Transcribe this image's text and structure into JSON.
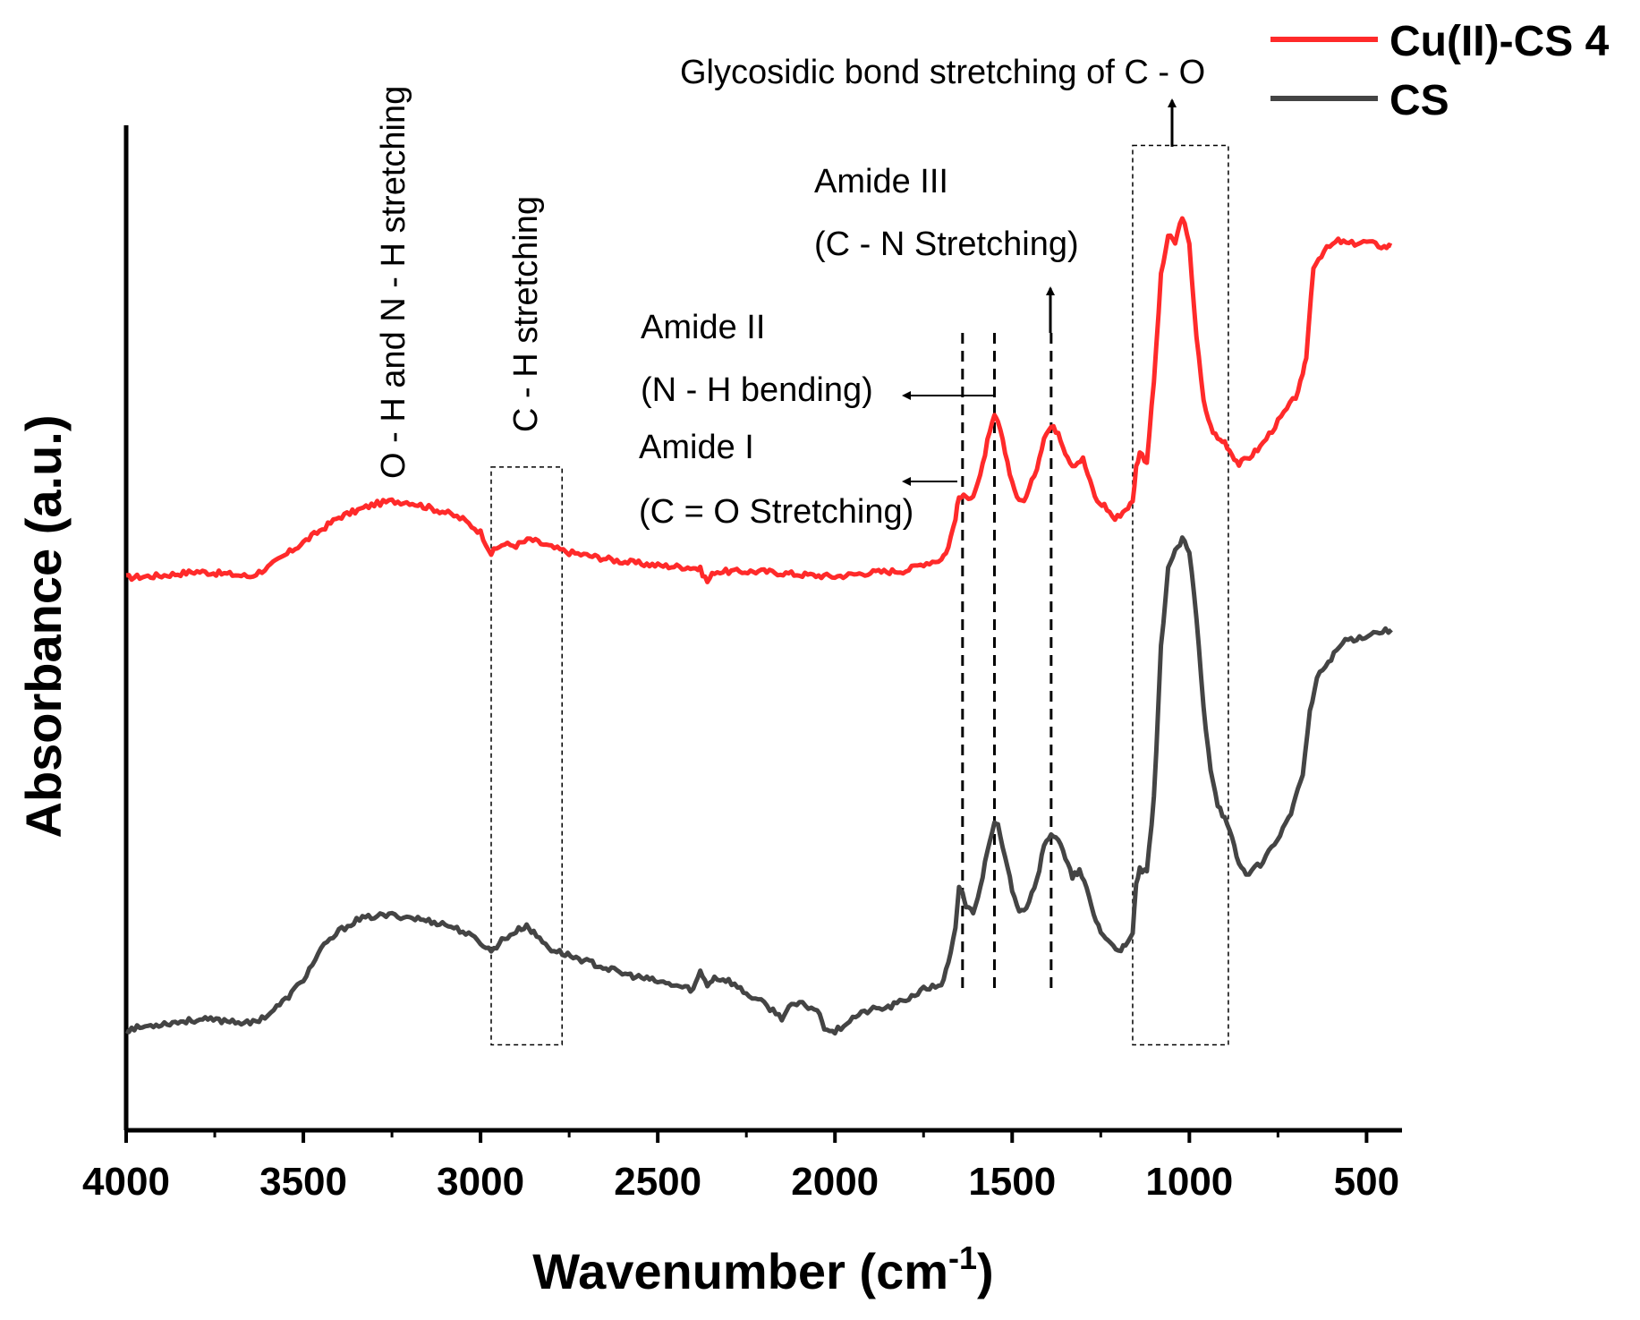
{
  "chart_data": {
    "type": "line",
    "title": "",
    "xlabel": "Wavenumber (cm",
    "xlabel_sup": "-1",
    "xlabel_close": ")",
    "ylabel": "Absorbance (a.u.)",
    "xlim": [
      4000,
      400
    ],
    "ylim": [
      0,
      100
    ],
    "x_ticks": [
      4000,
      3500,
      3000,
      2500,
      2000,
      1500,
      1000,
      500
    ],
    "x_tick_labels": [
      "4000",
      "3500",
      "3000",
      "2500",
      "2000",
      "1500",
      "1000",
      "500"
    ],
    "legend": {
      "position": "top-right",
      "entries": [
        "Cu(II)-CS 4",
        "CS"
      ]
    },
    "colors": {
      "Cu(II)-CS 4": "#ff2a2a",
      "CS": "#444444"
    },
    "series": [
      {
        "name": "Cu(II)-CS 4",
        "points": [
          [
            4000,
            55
          ],
          [
            3900,
            55.2
          ],
          [
            3800,
            55.6
          ],
          [
            3700,
            55.3
          ],
          [
            3650,
            55.1
          ],
          [
            3600,
            56
          ],
          [
            3500,
            58.5
          ],
          [
            3400,
            61
          ],
          [
            3300,
            62.3
          ],
          [
            3250,
            62.6
          ],
          [
            3200,
            62.5
          ],
          [
            3100,
            61.5
          ],
          [
            3050,
            60.8
          ],
          [
            3000,
            59.5
          ],
          [
            2970,
            57.4
          ],
          [
            2940,
            58.3
          ],
          [
            2900,
            58.2
          ],
          [
            2860,
            58.8
          ],
          [
            2800,
            58
          ],
          [
            2750,
            57.5
          ],
          [
            2700,
            57.2
          ],
          [
            2600,
            56.6
          ],
          [
            2500,
            56.2
          ],
          [
            2400,
            56
          ],
          [
            2380,
            55.8
          ],
          [
            2360,
            54.6
          ],
          [
            2340,
            55.6
          ],
          [
            2300,
            55.6
          ],
          [
            2200,
            55.6
          ],
          [
            2100,
            55.3
          ],
          [
            2000,
            55.1
          ],
          [
            1900,
            55.5
          ],
          [
            1800,
            55.7
          ],
          [
            1750,
            56.4
          ],
          [
            1700,
            56.8
          ],
          [
            1680,
            58
          ],
          [
            1660,
            61
          ],
          [
            1650,
            63
          ],
          [
            1630,
            63
          ],
          [
            1610,
            63.2
          ],
          [
            1590,
            65
          ],
          [
            1570,
            68.5
          ],
          [
            1550,
            71
          ],
          [
            1540,
            70.5
          ],
          [
            1520,
            67.5
          ],
          [
            1500,
            64.5
          ],
          [
            1480,
            62.5
          ],
          [
            1460,
            63
          ],
          [
            1430,
            66
          ],
          [
            1410,
            69
          ],
          [
            1390,
            70
          ],
          [
            1370,
            69.5
          ],
          [
            1350,
            67.5
          ],
          [
            1330,
            66.2
          ],
          [
            1300,
            66.8
          ],
          [
            1280,
            64.5
          ],
          [
            1260,
            62.5
          ],
          [
            1240,
            62.2
          ],
          [
            1210,
            60.8
          ],
          [
            1180,
            61.8
          ],
          [
            1160,
            62.5
          ],
          [
            1150,
            66
          ],
          [
            1140,
            67.5
          ],
          [
            1120,
            66.5
          ],
          [
            1100,
            74.5
          ],
          [
            1080,
            85
          ],
          [
            1060,
            89
          ],
          [
            1040,
            88.3
          ],
          [
            1020,
            91
          ],
          [
            1000,
            88
          ],
          [
            980,
            79
          ],
          [
            960,
            72.5
          ],
          [
            940,
            70
          ],
          [
            920,
            68.8
          ],
          [
            900,
            68.5
          ],
          [
            880,
            67.3
          ],
          [
            860,
            66.3
          ],
          [
            830,
            67
          ],
          [
            800,
            68
          ],
          [
            750,
            70.5
          ],
          [
            700,
            73
          ],
          [
            680,
            75
          ],
          [
            670,
            77
          ],
          [
            650,
            86
          ],
          [
            620,
            87.5
          ],
          [
            580,
            88.5
          ],
          [
            550,
            88.2
          ],
          [
            500,
            88.4
          ],
          [
            450,
            87.9
          ],
          [
            430,
            88
          ]
        ]
      },
      {
        "name": "CS",
        "points": [
          [
            4000,
            10
          ],
          [
            3900,
            10.6
          ],
          [
            3800,
            11
          ],
          [
            3700,
            10.9
          ],
          [
            3650,
            10.6
          ],
          [
            3600,
            11.5
          ],
          [
            3550,
            13
          ],
          [
            3500,
            15
          ],
          [
            3450,
            18
          ],
          [
            3400,
            19.8
          ],
          [
            3350,
            20.9
          ],
          [
            3300,
            21.3
          ],
          [
            3250,
            21.4
          ],
          [
            3200,
            21.2
          ],
          [
            3100,
            20.5
          ],
          [
            3050,
            19.8
          ],
          [
            3000,
            18.7
          ],
          [
            2970,
            17.8
          ],
          [
            2940,
            18.9
          ],
          [
            2900,
            19.8
          ],
          [
            2870,
            20.4
          ],
          [
            2850,
            19.6
          ],
          [
            2800,
            18
          ],
          [
            2700,
            16.8
          ],
          [
            2600,
            15.6
          ],
          [
            2500,
            14.8
          ],
          [
            2400,
            14
          ],
          [
            2380,
            15.8
          ],
          [
            2360,
            14.5
          ],
          [
            2340,
            15.2
          ],
          [
            2300,
            14.9
          ],
          [
            2250,
            13.6
          ],
          [
            2200,
            12.6
          ],
          [
            2150,
            11.2
          ],
          [
            2130,
            12.2
          ],
          [
            2100,
            12.6
          ],
          [
            2050,
            12
          ],
          [
            2030,
            10.3
          ],
          [
            2000,
            9.8
          ],
          [
            1950,
            11.2
          ],
          [
            1900,
            12
          ],
          [
            1850,
            12.2
          ],
          [
            1800,
            13
          ],
          [
            1750,
            14
          ],
          [
            1700,
            14.5
          ],
          [
            1680,
            16.5
          ],
          [
            1660,
            20
          ],
          [
            1650,
            24
          ],
          [
            1640,
            23.7
          ],
          [
            1630,
            22.2
          ],
          [
            1610,
            21.8
          ],
          [
            1590,
            24
          ],
          [
            1570,
            28
          ],
          [
            1550,
            30.8
          ],
          [
            1540,
            30.2
          ],
          [
            1520,
            27
          ],
          [
            1500,
            24
          ],
          [
            1480,
            22
          ],
          [
            1460,
            22.2
          ],
          [
            1430,
            25
          ],
          [
            1410,
            28.2
          ],
          [
            1390,
            29.6
          ],
          [
            1370,
            29
          ],
          [
            1350,
            27
          ],
          [
            1330,
            25.2
          ],
          [
            1310,
            25.8
          ],
          [
            1290,
            24
          ],
          [
            1270,
            21.5
          ],
          [
            1250,
            19.8
          ],
          [
            1230,
            18.8
          ],
          [
            1200,
            18
          ],
          [
            1180,
            18.2
          ],
          [
            1160,
            19.5
          ],
          [
            1150,
            24.5
          ],
          [
            1140,
            26
          ],
          [
            1120,
            25.5
          ],
          [
            1100,
            33
          ],
          [
            1080,
            48
          ],
          [
            1060,
            56
          ],
          [
            1040,
            57.5
          ],
          [
            1020,
            58.8
          ],
          [
            1000,
            57.5
          ],
          [
            980,
            51
          ],
          [
            960,
            42
          ],
          [
            940,
            36
          ],
          [
            920,
            32.5
          ],
          [
            900,
            31
          ],
          [
            880,
            29
          ],
          [
            860,
            26.5
          ],
          [
            840,
            25.5
          ],
          [
            800,
            26.5
          ],
          [
            760,
            28.5
          ],
          [
            720,
            31
          ],
          [
            700,
            33
          ],
          [
            680,
            35.5
          ],
          [
            660,
            41.5
          ],
          [
            640,
            45
          ],
          [
            600,
            47
          ],
          [
            560,
            48.8
          ],
          [
            520,
            49
          ],
          [
            480,
            49.5
          ],
          [
            430,
            49.8
          ]
        ]
      }
    ],
    "dashed_lines": [
      1640,
      1550,
      1390
    ],
    "boxes": [
      {
        "x_from": 2970,
        "x_to": 2770,
        "y_from": 8.5,
        "y_to": 66
      },
      {
        "x_from": 1160,
        "x_to": 890,
        "y_from": 8.5,
        "y_to": 98
      }
    ],
    "annotations": {
      "oh_nh": "O - H and N - H stretching",
      "ch": "C - H stretching",
      "amide1": "Amide I",
      "amide1_sub": "(C = O Stretching)",
      "amide2": "Amide II",
      "amide2_sub": "(N - H bending)",
      "amide3": "Amide III",
      "amide3_sub": "(C - N Stretching)",
      "glycosidic": "Glycosidic bond stretching of C - O"
    }
  }
}
